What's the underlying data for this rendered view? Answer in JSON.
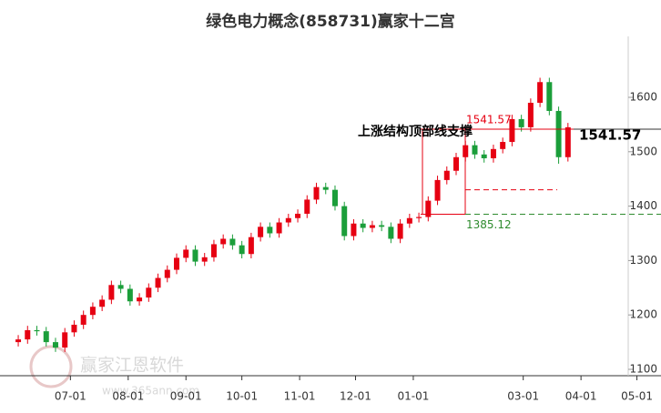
{
  "chart_data": {
    "type": "candlestick",
    "title": "绿色电力概念(858731)赢家十二宫",
    "x": [
      "06-03",
      "06-08",
      "06-13",
      "06-18",
      "06-23",
      "06-28",
      "07-03",
      "07-08",
      "07-13",
      "07-18",
      "07-23",
      "07-28",
      "08-02",
      "08-07",
      "08-12",
      "08-17",
      "08-22",
      "08-27",
      "09-01",
      "09-06",
      "09-11",
      "09-16",
      "09-21",
      "09-26",
      "10-01",
      "10-06",
      "10-11",
      "10-16",
      "10-21",
      "10-26",
      "10-31",
      "11-05",
      "11-10",
      "11-15",
      "11-20",
      "11-25",
      "11-30",
      "12-05",
      "12-10",
      "12-15",
      "12-20",
      "12-25",
      "12-30",
      "01-04",
      "01-09",
      "01-14",
      "01-19",
      "01-24",
      "01-29",
      "02-03",
      "02-08",
      "02-13",
      "02-18",
      "02-23",
      "02-28",
      "03-05",
      "03-10",
      "03-15",
      "03-20",
      "03-25"
    ],
    "open": [
      1150,
      1155,
      1172,
      1170,
      1150,
      1140,
      1168,
      1182,
      1200,
      1215,
      1228,
      1255,
      1248,
      1225,
      1232,
      1250,
      1268,
      1283,
      1305,
      1320,
      1298,
      1306,
      1330,
      1340,
      1328,
      1312,
      1343,
      1362,
      1350,
      1370,
      1378,
      1386,
      1412,
      1435,
      1430,
      1400,
      1345,
      1368,
      1360,
      1365,
      1362,
      1340,
      1368,
      1378,
      1380,
      1410,
      1448,
      1465,
      1490,
      1512,
      1495,
      1488,
      1505,
      1518,
      1560,
      1545,
      1590,
      1628,
      1575,
      1490
    ],
    "high": [
      1163,
      1180,
      1180,
      1178,
      1158,
      1176,
      1190,
      1208,
      1223,
      1236,
      1263,
      1263,
      1256,
      1240,
      1258,
      1276,
      1291,
      1313,
      1328,
      1328,
      1314,
      1338,
      1348,
      1348,
      1336,
      1351,
      1370,
      1370,
      1378,
      1386,
      1394,
      1420,
      1443,
      1443,
      1438,
      1408,
      1376,
      1376,
      1373,
      1373,
      1370,
      1376,
      1386,
      1388,
      1418,
      1456,
      1473,
      1498,
      1520,
      1520,
      1503,
      1513,
      1526,
      1568,
      1568,
      1598,
      1636,
      1636,
      1583,
      1553
    ],
    "low": [
      1142,
      1147,
      1162,
      1142,
      1132,
      1132,
      1160,
      1174,
      1192,
      1207,
      1220,
      1240,
      1217,
      1217,
      1224,
      1242,
      1260,
      1275,
      1297,
      1290,
      1290,
      1298,
      1322,
      1320,
      1304,
      1304,
      1335,
      1342,
      1342,
      1362,
      1370,
      1378,
      1404,
      1422,
      1392,
      1337,
      1337,
      1352,
      1352,
      1354,
      1332,
      1332,
      1360,
      1370,
      1372,
      1402,
      1440,
      1457,
      1482,
      1487,
      1480,
      1480,
      1497,
      1510,
      1537,
      1537,
      1582,
      1567,
      1478,
      1482
    ],
    "close": [
      1155,
      1172,
      1170,
      1150,
      1140,
      1168,
      1182,
      1200,
      1215,
      1228,
      1255,
      1248,
      1225,
      1232,
      1250,
      1268,
      1283,
      1305,
      1320,
      1298,
      1306,
      1330,
      1340,
      1328,
      1312,
      1343,
      1362,
      1350,
      1370,
      1378,
      1386,
      1412,
      1435,
      1430,
      1400,
      1345,
      1368,
      1360,
      1365,
      1362,
      1340,
      1368,
      1378,
      1380,
      1410,
      1448,
      1465,
      1490,
      1512,
      1495,
      1488,
      1505,
      1518,
      1560,
      1545,
      1590,
      1628,
      1575,
      1490,
      1545
    ],
    "up_color": "#e60012",
    "down_color": "#1b9e3a",
    "xlim": [
      "06-02",
      "05-11"
    ],
    "xticks": [
      "07-01",
      "08-01",
      "09-01",
      "10-01",
      "11-01",
      "12-01",
      "01-01",
      "03-01",
      "04-01",
      "05-01"
    ],
    "ylim": [
      1088,
      1700
    ],
    "yticks": [
      1100,
      1200,
      1300,
      1400,
      1500,
      1600
    ],
    "levels": [
      {
        "value": 1541.57,
        "color": "#e60012"
      },
      {
        "value": 1385.12,
        "color": "#2e8b2e"
      },
      {
        "value": 1430,
        "color": "#e60012"
      }
    ],
    "annotation": "上涨结构顶部线支撑",
    "watermark": [
      "赢家江恩软件",
      "www.365ann.com"
    ]
  }
}
